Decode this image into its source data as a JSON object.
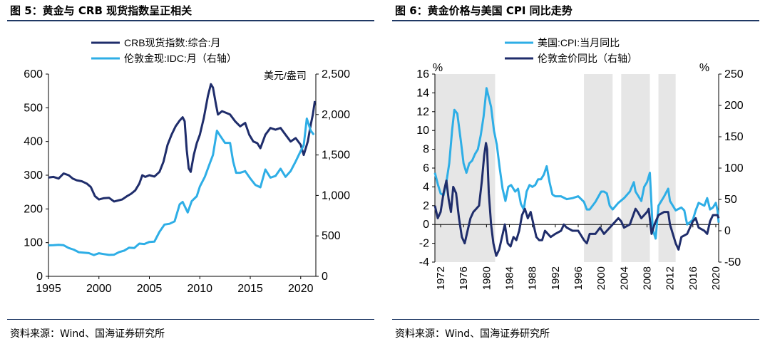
{
  "fig5": {
    "title": "图 5：黄金与 CRB 现货指数呈正相关",
    "source": "资料来源：Wind、国海证券研究所"
  },
  "fig6": {
    "title": "图 6：黄金价格与美国 CPI 同比走势",
    "source": "资料来源：Wind、国海证券研究所"
  },
  "chart_data": [
    {
      "type": "line",
      "title": "图 5：黄金与 CRB 现货指数呈正相关",
      "x_range": [
        1995,
        2021.5
      ],
      "x_ticks": [
        "1995",
        "2000",
        "2005",
        "2010",
        "2015",
        "2020"
      ],
      "left_axis": {
        "ylim": [
          0,
          600
        ],
        "ticks": [
          "0",
          "100",
          "200",
          "300",
          "400",
          "500",
          "600"
        ]
      },
      "right_axis": {
        "ylim": [
          0,
          2500
        ],
        "ticks": [
          "0",
          "500",
          "1,000",
          "1,500",
          "2,000",
          "2,500"
        ],
        "unit": "美元/盎司"
      },
      "grid": false,
      "legend_position": "top-left",
      "colors": {
        "crb": "#1f2d6b",
        "gold": "#2eaee6"
      },
      "series": [
        {
          "name": "CRB现货指数:综合:月",
          "axis": "left",
          "color": "#1f2d6b",
          "x": [
            1995,
            1995.5,
            1996,
            1996.5,
            1997,
            1997.4,
            1997.8,
            1998.3,
            1998.8,
            1999.2,
            1999.6,
            2000,
            2000.5,
            2001,
            2001.5,
            2001.9,
            2002.3,
            2002.8,
            2003.2,
            2003.6,
            2004,
            2004.3,
            2004.6,
            2005,
            2005.5,
            2006,
            2006.4,
            2006.8,
            2007.2,
            2007.6,
            2008,
            2008.3,
            2008.5,
            2008.7,
            2008.9,
            2009.1,
            2009.4,
            2009.7,
            2010,
            2010.4,
            2010.8,
            2011.1,
            2011.3,
            2011.6,
            2011.8,
            2012.2,
            2012.6,
            2013,
            2013.5,
            2014,
            2014.5,
            2014.9,
            2015.3,
            2015.7,
            2016,
            2016.5,
            2017,
            2017.5,
            2018,
            2018.5,
            2019,
            2019.5,
            2020,
            2020.3,
            2020.7,
            2021,
            2021.2,
            2021.4
          ],
          "values": [
            293,
            295,
            290,
            305,
            300,
            290,
            285,
            282,
            275,
            265,
            238,
            228,
            232,
            233,
            222,
            225,
            228,
            238,
            245,
            255,
            275,
            300,
            295,
            300,
            296,
            310,
            340,
            390,
            420,
            445,
            462,
            472,
            460,
            375,
            320,
            310,
            360,
            395,
            420,
            470,
            535,
            570,
            560,
            510,
            480,
            490,
            485,
            480,
            460,
            445,
            455,
            420,
            400,
            395,
            380,
            420,
            440,
            435,
            440,
            420,
            400,
            410,
            390,
            360,
            400,
            450,
            480,
            520
          ]
        },
        {
          "name": "伦敦金现:IDC:月（右轴）",
          "axis": "right",
          "color": "#2eaee6",
          "x": [
            1995,
            1995.5,
            1996,
            1996.5,
            1997,
            1997.5,
            1998,
            1998.5,
            1999,
            1999.5,
            2000,
            2000.5,
            2001,
            2001.5,
            2002,
            2002.5,
            2003,
            2003.5,
            2004,
            2004.5,
            2005,
            2005.5,
            2006,
            2006.5,
            2007,
            2007.5,
            2008,
            2008.3,
            2008.8,
            2009.2,
            2009.7,
            2010,
            2010.5,
            2011,
            2011.3,
            2011.7,
            2012,
            2012.5,
            2013,
            2013.3,
            2013.6,
            2014,
            2014.5,
            2015,
            2015.5,
            2016,
            2016.5,
            2017,
            2017.5,
            2018,
            2018.5,
            2019,
            2019.5,
            2020,
            2020.3,
            2020.6,
            2021,
            2021.3
          ],
          "values": [
            383,
            386,
            390,
            385,
            350,
            330,
            298,
            292,
            287,
            263,
            285,
            275,
            265,
            268,
            300,
            318,
            355,
            350,
            405,
            400,
            425,
            430,
            550,
            640,
            650,
            680,
            890,
            920,
            790,
            930,
            990,
            1110,
            1230,
            1400,
            1500,
            1800,
            1740,
            1650,
            1650,
            1420,
            1280,
            1280,
            1300,
            1210,
            1130,
            1100,
            1320,
            1220,
            1240,
            1330,
            1230,
            1300,
            1420,
            1550,
            1620,
            1950,
            1800,
            1750
          ]
        }
      ]
    },
    {
      "type": "line",
      "title": "图 6：黄金价格与美国 CPI 同比走势",
      "x_range": [
        1971,
        2020.5
      ],
      "x_ticks": [
        "1972",
        "1976",
        "1980",
        "1984",
        "1988",
        "1992",
        "1996",
        "2000",
        "2004",
        "2008",
        "2012",
        "2016",
        "2020"
      ],
      "left_axis": {
        "ylim": [
          -4,
          16
        ],
        "ticks": [
          "-4",
          "-2",
          "0",
          "2",
          "4",
          "6",
          "8",
          "10",
          "12",
          "14",
          "16"
        ],
        "unit": "%"
      },
      "right_axis": {
        "ylim": [
          -50,
          250
        ],
        "ticks": [
          "-50",
          "0",
          "50",
          "100",
          "150",
          "200",
          "250"
        ],
        "unit": "%"
      },
      "grid": false,
      "legend_position": "top-center",
      "shaded_periods": [
        [
          1971,
          1981.5
        ],
        [
          1997,
          2002
        ],
        [
          2003.5,
          2008.5
        ],
        [
          2010,
          2013
        ]
      ],
      "colors": {
        "cpi": "#2eaee6",
        "gold": "#1f2d6b",
        "shade": "#e6e6e6"
      },
      "series": [
        {
          "name": "美国:CPI:当月同比",
          "axis": "left",
          "color": "#2eaee6",
          "x": [
            1971,
            1971.5,
            1972,
            1972.5,
            1973,
            1973.5,
            1974,
            1974.4,
            1974.9,
            1975.5,
            1976,
            1976.5,
            1977,
            1977.5,
            1978,
            1978.5,
            1979,
            1979.5,
            1980,
            1980.4,
            1980.8,
            1981.3,
            1981.8,
            1982.3,
            1982.8,
            1983.3,
            1983.8,
            1984.3,
            1985,
            1985.5,
            1986,
            1986.5,
            1987,
            1987.5,
            1988,
            1988.5,
            1989,
            1989.5,
            1990,
            1990.5,
            1991,
            1991.5,
            1992,
            1993,
            1994,
            1995,
            1996,
            1997,
            1997.5,
            1998,
            1999,
            2000,
            2000.5,
            2001,
            2001.5,
            2002,
            2003,
            2004,
            2005,
            2005.7,
            2006,
            2007,
            2007.5,
            2008,
            2008.5,
            2009,
            2009.5,
            2010,
            2011,
            2011.7,
            2012,
            2013,
            2014,
            2014.5,
            2015,
            2016,
            2016.5,
            2017,
            2018,
            2018.5,
            2019,
            2019.5,
            2020,
            2020.3,
            2020.5
          ],
          "values": [
            5.5,
            4.3,
            3.3,
            3.1,
            4.5,
            6.5,
            10,
            12.2,
            11.8,
            9,
            6.5,
            5.5,
            6.5,
            6.8,
            7.5,
            8,
            9.5,
            11.5,
            14.5,
            13.5,
            12.5,
            10,
            8.5,
            6,
            3.8,
            2.5,
            4,
            4.2,
            3.5,
            3.8,
            2.2,
            1.6,
            3.5,
            4.2,
            4,
            4.2,
            4.8,
            4.8,
            5.3,
            6.2,
            4.5,
            3.2,
            3,
            3,
            2.7,
            2.8,
            3,
            2.4,
            1.6,
            1.6,
            2.4,
            3.5,
            3.5,
            3.3,
            2,
            1.6,
            2.3,
            2.8,
            3.5,
            4.5,
            3.5,
            2.5,
            4,
            4.5,
            5.5,
            -0.5,
            -1.5,
            2,
            3,
            3.8,
            2.5,
            1.5,
            1.8,
            1.5,
            0,
            0.5,
            1.5,
            2.3,
            2,
            2.8,
            1.6,
            1.8,
            2.3,
            1.5,
            0.2
          ]
        },
        {
          "name": "伦敦金价同比（右轴）",
          "axis": "right",
          "color": "#1f2d6b",
          "x": [
            1971,
            1971.5,
            1972,
            1972.5,
            1973,
            1973.4,
            1973.8,
            1974.2,
            1974.7,
            1975.2,
            1975.7,
            1976.2,
            1976.7,
            1977.2,
            1977.7,
            1978.2,
            1978.7,
            1979.2,
            1979.6,
            1979.9,
            1980.1,
            1980.4,
            1980.8,
            1981.2,
            1981.7,
            1982.2,
            1982.7,
            1983.2,
            1983.7,
            1984.2,
            1984.7,
            1985.2,
            1985.7,
            1986.2,
            1986.7,
            1987.2,
            1987.7,
            1988.2,
            1988.7,
            1989.2,
            1989.7,
            1990.2,
            1990.7,
            1991.2,
            1992,
            1993,
            1993.5,
            1994,
            1995,
            1996,
            1997,
            1997.5,
            1998,
            1999,
            1999.8,
            2000.5,
            2001,
            2002,
            2003,
            2003.5,
            2004,
            2005,
            2006,
            2006.4,
            2007,
            2008,
            2008.3,
            2008.8,
            2009.3,
            2010,
            2011,
            2011.7,
            2012,
            2013,
            2013.5,
            2014,
            2015,
            2016,
            2016.5,
            2017,
            2018,
            2018.5,
            2019,
            2019.5,
            2020,
            2020.3,
            2020.5
          ],
          "values": [
            40,
            20,
            30,
            60,
            80,
            50,
            30,
            70,
            60,
            20,
            -10,
            -20,
            0,
            20,
            30,
            35,
            40,
            80,
            120,
            140,
            130,
            60,
            10,
            -20,
            -40,
            -30,
            -10,
            10,
            -20,
            -25,
            -10,
            -15,
            0,
            25,
            35,
            20,
            30,
            10,
            -10,
            -15,
            -15,
            0,
            -5,
            -10,
            -5,
            0,
            10,
            5,
            0,
            0,
            -15,
            -20,
            -5,
            -5,
            5,
            -5,
            0,
            10,
            20,
            15,
            5,
            10,
            35,
            30,
            20,
            30,
            35,
            -5,
            10,
            25,
            30,
            30,
            10,
            -20,
            -30,
            -10,
            -5,
            15,
            20,
            5,
            0,
            -5,
            15,
            25,
            25,
            25,
            20
          ]
        }
      ]
    }
  ]
}
